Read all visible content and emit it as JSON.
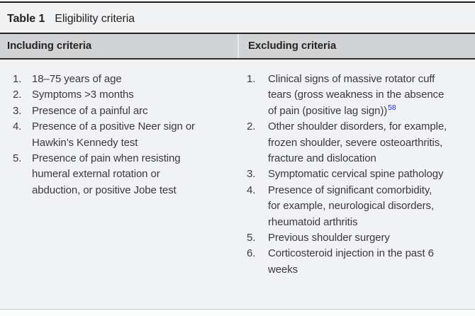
{
  "colors": {
    "body_bg": "#f1f2f4",
    "header_bg": "#d2d3d5",
    "rule_dark": "#1e1e20",
    "rule_light": "#c9cacc",
    "text": "#3a3a3c",
    "reference_link": "#2526cf"
  },
  "table": {
    "label": "Table 1",
    "title": "Eligibility criteria",
    "columns": [
      {
        "id": "including",
        "header": "Including criteria",
        "items": [
          {
            "number": "1.",
            "text": "18–75 years of age"
          },
          {
            "number": "2.",
            "text": "Symptoms >3 months"
          },
          {
            "number": "3.",
            "text": "Presence of a painful arc"
          },
          {
            "number": "4.",
            "text": "Presence of a positive Neer sign or\nHawkin’s Kennedy test"
          },
          {
            "number": "5.",
            "text": "Presence of pain when resisting\nhumeral external rotation or\nabduction, or positive Jobe test"
          }
        ]
      },
      {
        "id": "excluding",
        "header": "Excluding criteria",
        "items": [
          {
            "number": "1.",
            "text": "Clinical signs of massive rotator cuff\ntears (gross weakness in the absence\nof pain (positive lag sign))",
            "ref": "58"
          },
          {
            "number": "2.",
            "text": "Other shoulder disorders, for example,\nfrozen shoulder, severe osteoarthritis,\nfracture and dislocation"
          },
          {
            "number": "3.",
            "text": "Symptomatic cervical spine pathology"
          },
          {
            "number": "4.",
            "text": "Presence of significant comorbidity,\nfor example, neurological disorders,\nrheumatoid arthritis"
          },
          {
            "number": "5.",
            "text": "Previous shoulder surgery"
          },
          {
            "number": "6.",
            "text": "Corticosteroid injection in the past 6\nweeks"
          }
        ]
      }
    ]
  }
}
